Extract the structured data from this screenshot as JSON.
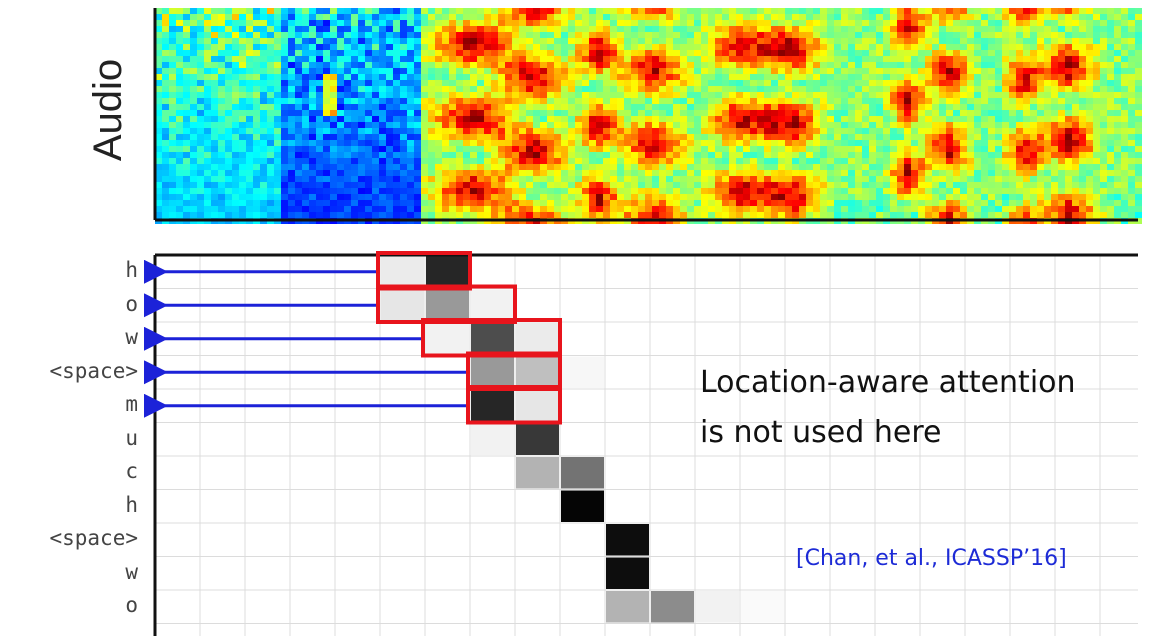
{
  "audio_label": "Audio",
  "output_tokens": [
    "h",
    "o",
    "w",
    "<space>",
    "m",
    "u",
    "c",
    "h",
    "<space>",
    "w",
    "o"
  ],
  "attention": [
    [
      {
        "c": 5,
        "v": 0.08
      },
      {
        "c": 6,
        "v": 0.85
      }
    ],
    [
      {
        "c": 5,
        "v": 0.1
      },
      {
        "c": 6,
        "v": 0.4
      },
      {
        "c": 7,
        "v": 0.05
      }
    ],
    [
      {
        "c": 6,
        "v": 0.05
      },
      {
        "c": 7,
        "v": 0.7
      },
      {
        "c": 8,
        "v": 0.08
      }
    ],
    [
      {
        "c": 7,
        "v": 0.4
      },
      {
        "c": 8,
        "v": 0.25
      },
      {
        "c": 9,
        "v": 0.03
      }
    ],
    [
      {
        "c": 7,
        "v": 0.85
      },
      {
        "c": 8,
        "v": 0.1
      }
    ],
    [
      {
        "c": 7,
        "v": 0.05
      },
      {
        "c": 8,
        "v": 0.78
      }
    ],
    [
      {
        "c": 8,
        "v": 0.3
      },
      {
        "c": 9,
        "v": 0.55
      }
    ],
    [
      {
        "c": 9,
        "v": 0.98
      }
    ],
    [
      {
        "c": 10,
        "v": 0.95
      }
    ],
    [
      {
        "c": 10,
        "v": 0.95
      }
    ],
    [
      {
        "c": 10,
        "v": 0.3
      },
      {
        "c": 11,
        "v": 0.45
      },
      {
        "c": 12,
        "v": 0.05
      },
      {
        "c": 13,
        "v": 0.02
      }
    ]
  ],
  "highlight_rows": [
    0,
    1,
    2,
    3,
    4
  ],
  "highlight_boxes": [
    {
      "row": 0,
      "c0": 5,
      "c1": 6
    },
    {
      "row": 1,
      "c0": 5,
      "c1": 7
    },
    {
      "row": 2,
      "c0": 6,
      "c1": 8
    },
    {
      "row": 3,
      "c0": 7,
      "c1": 8
    },
    {
      "row": 4,
      "c0": 7,
      "c1": 8
    }
  ],
  "note_lines": [
    "Location-aware attention",
    "is not used here"
  ],
  "citation": "[Chan, et al., ICASSP’16]",
  "colors": {
    "highlight": "#e8141c",
    "arrow": "#1c22d8",
    "citation": "#1d2bd6"
  }
}
